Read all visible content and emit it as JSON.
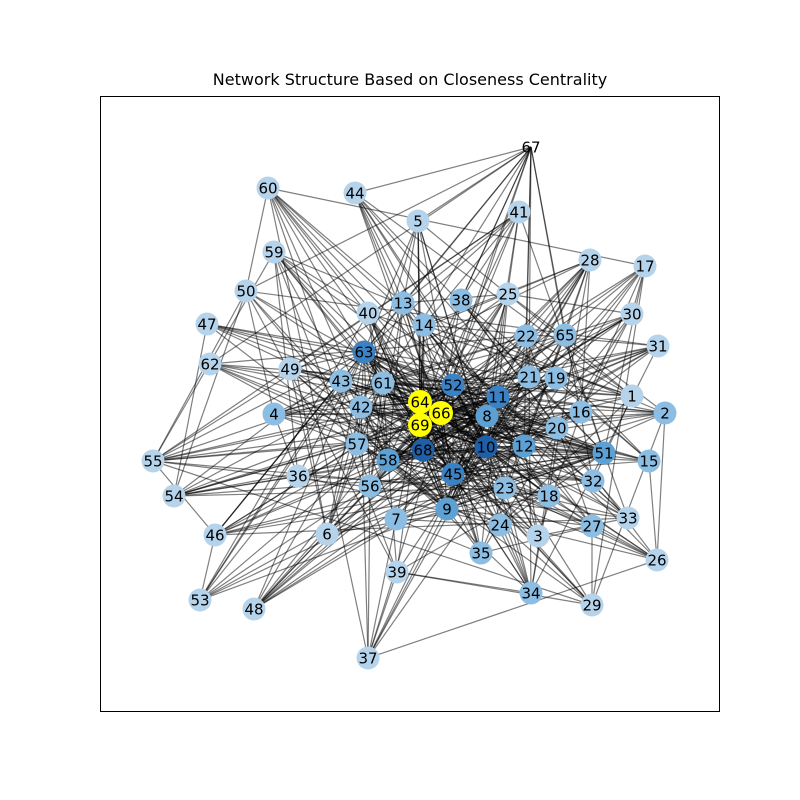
{
  "title": "Network Structure Based on Closeness Centrality",
  "palette": {
    "highest": "#ffff00",
    "tier1": "#1f5fa8",
    "tier2": "#3a82c4",
    "tier3": "#5da1d4",
    "tier4": "#8cbde3",
    "tier5": "#b5d4ec"
  },
  "nodes": [
    {
      "id": "1",
      "tier": "tier5"
    },
    {
      "id": "2",
      "tier": "tier4"
    },
    {
      "id": "3",
      "tier": "tier5"
    },
    {
      "id": "4",
      "tier": "tier4"
    },
    {
      "id": "5",
      "tier": "tier5"
    },
    {
      "id": "6",
      "tier": "tier5"
    },
    {
      "id": "7",
      "tier": "tier4"
    },
    {
      "id": "8",
      "tier": "tier3"
    },
    {
      "id": "9",
      "tier": "tier3"
    },
    {
      "id": "10",
      "tier": "tier1"
    },
    {
      "id": "11",
      "tier": "tier2"
    },
    {
      "id": "12",
      "tier": "tier3"
    },
    {
      "id": "13",
      "tier": "tier4"
    },
    {
      "id": "14",
      "tier": "tier4"
    },
    {
      "id": "15",
      "tier": "tier4"
    },
    {
      "id": "16",
      "tier": "tier4"
    },
    {
      "id": "17",
      "tier": "tier5"
    },
    {
      "id": "18",
      "tier": "tier4"
    },
    {
      "id": "19",
      "tier": "tier4"
    },
    {
      "id": "20",
      "tier": "tier4"
    },
    {
      "id": "21",
      "tier": "tier4"
    },
    {
      "id": "22",
      "tier": "tier4"
    },
    {
      "id": "23",
      "tier": "tier4"
    },
    {
      "id": "24",
      "tier": "tier4"
    },
    {
      "id": "25",
      "tier": "tier5"
    },
    {
      "id": "26",
      "tier": "tier5"
    },
    {
      "id": "27",
      "tier": "tier4"
    },
    {
      "id": "28",
      "tier": "tier5"
    },
    {
      "id": "29",
      "tier": "tier5"
    },
    {
      "id": "30",
      "tier": "tier5"
    },
    {
      "id": "31",
      "tier": "tier5"
    },
    {
      "id": "32",
      "tier": "tier4"
    },
    {
      "id": "33",
      "tier": "tier5"
    },
    {
      "id": "34",
      "tier": "tier4"
    },
    {
      "id": "35",
      "tier": "tier4"
    },
    {
      "id": "36",
      "tier": "tier5"
    },
    {
      "id": "37",
      "tier": "tier5"
    },
    {
      "id": "38",
      "tier": "tier4"
    },
    {
      "id": "39",
      "tier": "tier5"
    },
    {
      "id": "40",
      "tier": "tier5"
    },
    {
      "id": "41",
      "tier": "tier5"
    },
    {
      "id": "42",
      "tier": "tier4"
    },
    {
      "id": "43",
      "tier": "tier4"
    },
    {
      "id": "44",
      "tier": "tier5"
    },
    {
      "id": "45",
      "tier": "tier2"
    },
    {
      "id": "46",
      "tier": "tier5"
    },
    {
      "id": "47",
      "tier": "tier5"
    },
    {
      "id": "48",
      "tier": "tier5"
    },
    {
      "id": "49",
      "tier": "tier5"
    },
    {
      "id": "50",
      "tier": "tier5"
    },
    {
      "id": "51",
      "tier": "tier3"
    },
    {
      "id": "52",
      "tier": "tier2"
    },
    {
      "id": "53",
      "tier": "tier5"
    },
    {
      "id": "54",
      "tier": "tier5"
    },
    {
      "id": "55",
      "tier": "tier5"
    },
    {
      "id": "56",
      "tier": "tier4"
    },
    {
      "id": "57",
      "tier": "tier4"
    },
    {
      "id": "58",
      "tier": "tier3"
    },
    {
      "id": "59",
      "tier": "tier5"
    },
    {
      "id": "60",
      "tier": "tier5"
    },
    {
      "id": "61",
      "tier": "tier4"
    },
    {
      "id": "62",
      "tier": "tier5"
    },
    {
      "id": "63",
      "tier": "tier2"
    },
    {
      "id": "64",
      "tier": "highest"
    },
    {
      "id": "65",
      "tier": "tier4"
    },
    {
      "id": "66",
      "tier": "highest"
    },
    {
      "id": "67",
      "tier": "none"
    },
    {
      "id": "68",
      "tier": "tier1"
    },
    {
      "id": "69",
      "tier": "highest"
    }
  ]
}
